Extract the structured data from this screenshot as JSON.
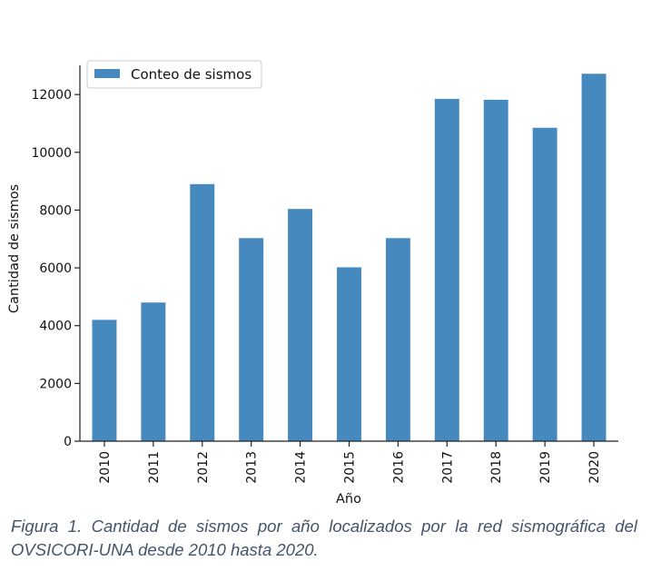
{
  "chart_data": {
    "type": "bar",
    "categories": [
      "2010",
      "2011",
      "2012",
      "2013",
      "2014",
      "2015",
      "2016",
      "2017",
      "2018",
      "2019",
      "2020"
    ],
    "series": [
      {
        "name": "Conteo de sismos",
        "values": [
          4200,
          4800,
          8900,
          7030,
          8040,
          6020,
          7030,
          11850,
          11820,
          10850,
          12720
        ],
        "color": "#4689be"
      }
    ],
    "xlabel": "Año",
    "ylabel": "Cantidad de sismos",
    "ylim": [
      0,
      13200
    ],
    "yticks": [
      0,
      2000,
      4000,
      6000,
      8000,
      10000,
      12000
    ],
    "legend": {
      "position": "top-left",
      "labels": [
        "Conteo de sismos"
      ]
    },
    "grid": false
  },
  "caption": "Figura 1. Cantidad de sismos por año localizados por la red sismográfica del OVSICORI-UNA desde 2010 hasta 2020."
}
